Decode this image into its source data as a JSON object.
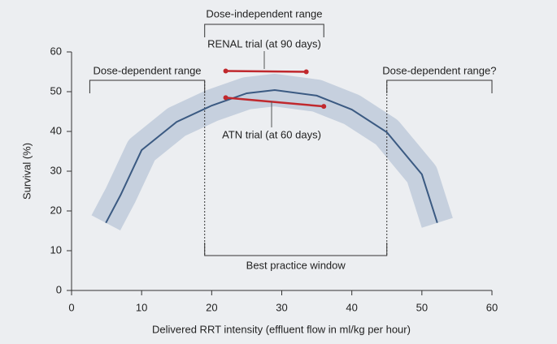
{
  "chart_data": {
    "type": "line",
    "x_label": "Delivered RRT intensity (effluent flow in ml/kg per hour)",
    "y_label": "Survival (%)",
    "xlim": [
      0,
      60
    ],
    "ylim": [
      0,
      60
    ],
    "xticks": [
      0,
      10,
      20,
      30,
      40,
      50,
      60
    ],
    "yticks": [
      0,
      10,
      20,
      30,
      40,
      50,
      60
    ],
    "band_color": "#c6d0de",
    "series": [
      {
        "color": "#3b5a82",
        "x": [
          4.9,
          7,
          10,
          15,
          20,
          25,
          29,
          35,
          40,
          45,
          50,
          52.2
        ],
        "values": [
          17,
          24,
          35.3,
          42.4,
          46.5,
          49.6,
          50.4,
          49,
          45.5,
          39.8,
          29.2,
          17
        ]
      },
      {
        "name": "RENAL trial (at 90 days)",
        "color": "#c0282d",
        "x": [
          22,
          33.5
        ],
        "values": [
          55.2,
          55
        ]
      },
      {
        "name": "ATN trial (at 60 days)",
        "color": "#c0282d",
        "x": [
          22,
          36
        ],
        "values": [
          48.5,
          46.3
        ]
      }
    ],
    "annotations": [
      {
        "text": "Dose-independent range",
        "x_range": [
          19,
          36
        ]
      },
      {
        "text": "Dose-dependent range",
        "x_range": [
          2.6,
          19
        ]
      },
      {
        "text": "Dose-dependent range?",
        "x_range": [
          45,
          60
        ]
      },
      {
        "text": "Best practice window",
        "x_range": [
          19,
          45
        ]
      }
    ]
  }
}
